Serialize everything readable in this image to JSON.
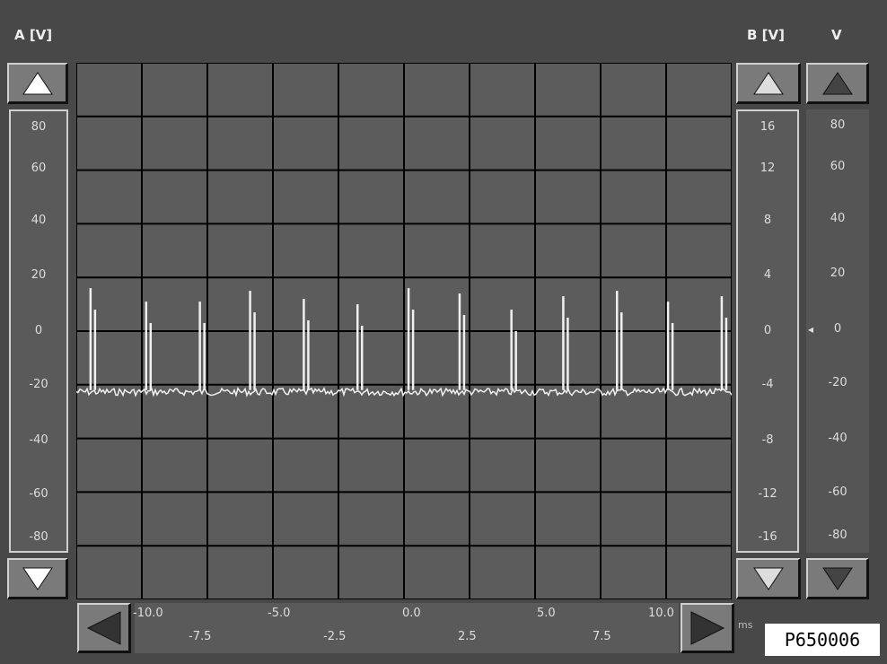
{
  "left_axis": {
    "label": "A [V]",
    "ticks": [
      "80",
      "60",
      "40",
      "20",
      "0",
      "-20",
      "-40",
      "-60",
      "-80"
    ]
  },
  "right_axis_b": {
    "label": "B [V]",
    "ticks": [
      "16",
      "12",
      "8",
      "4",
      "0",
      "-4",
      "-8",
      "-12",
      "-16"
    ]
  },
  "right_axis_v": {
    "label": "V",
    "ticks": [
      "80",
      "60",
      "40",
      "20",
      "0",
      "-20",
      "-40",
      "-60",
      "-80"
    ],
    "marker": "◂"
  },
  "x_axis": {
    "unit": "ms",
    "ticks_top": [
      "-10.0",
      "-5.0",
      "0.0",
      "5.0",
      "10.0"
    ],
    "ticks_bottom": [
      "-7.5",
      "-2.5",
      "2.5",
      "7.5"
    ]
  },
  "buttons": {
    "a_up": "up-arrow",
    "a_down": "down-arrow",
    "b_up": "up-arrow",
    "b_down": "down-arrow",
    "v_up": "up-arrow",
    "v_down": "down-arrow",
    "x_left": "left-arrow",
    "x_right": "right-arrow"
  },
  "image_id_label": "P650006",
  "colors": {
    "background": "#484848",
    "plot": "#5c5c5c",
    "grid": "#000000",
    "trace": "#f0f0f0"
  },
  "chart_data": {
    "type": "line",
    "xlim": [
      -12.2,
      12.2
    ],
    "ylim": [
      -100,
      100
    ],
    "grid": true,
    "baseline": -22,
    "spikes": [
      {
        "x": -11.67,
        "y": 16
      },
      {
        "x": -9.6,
        "y": 11
      },
      {
        "x": -7.6,
        "y": 11
      },
      {
        "x": -5.73,
        "y": 15
      },
      {
        "x": -3.73,
        "y": 12
      },
      {
        "x": -1.73,
        "y": 10
      },
      {
        "x": 0.17,
        "y": 16
      },
      {
        "x": 2.07,
        "y": 14
      },
      {
        "x": 4.0,
        "y": 8
      },
      {
        "x": 5.93,
        "y": 13
      },
      {
        "x": 7.93,
        "y": 15
      },
      {
        "x": 9.83,
        "y": 11
      },
      {
        "x": 11.83,
        "y": 13
      }
    ]
  }
}
